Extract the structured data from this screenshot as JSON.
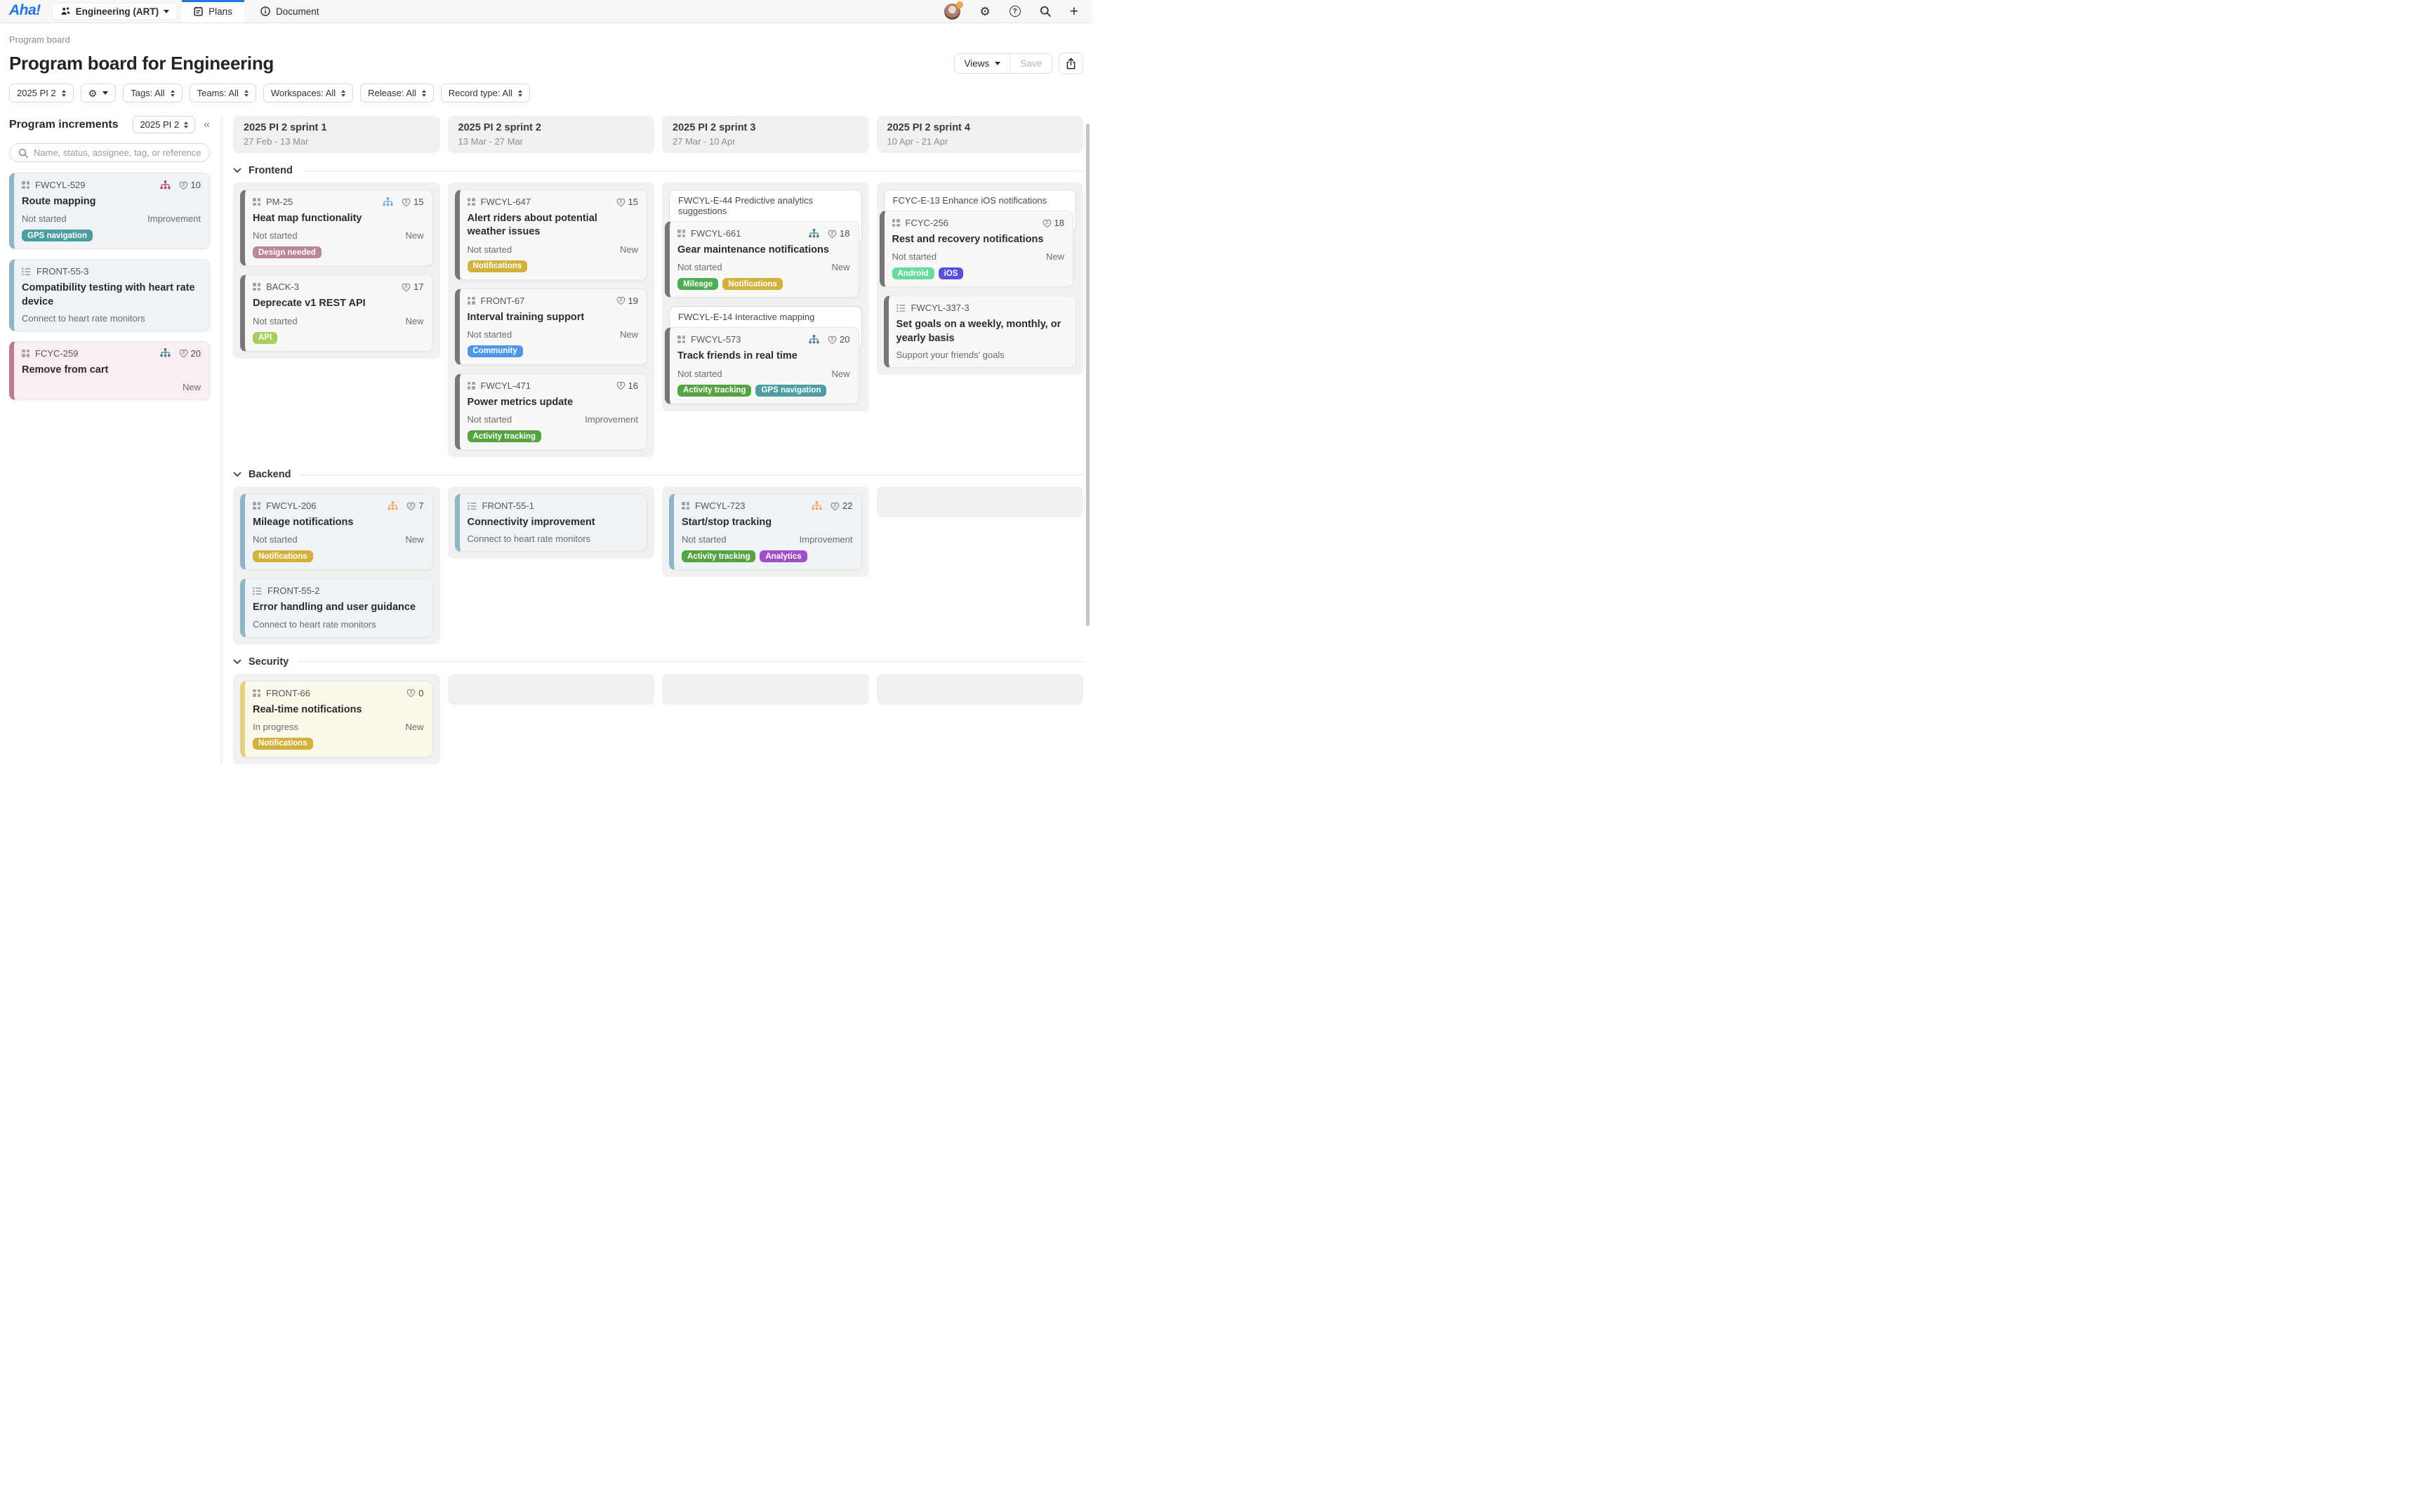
{
  "navbar": {
    "logo": "Aha!",
    "workspace": "Engineering (ART)",
    "tabs": [
      {
        "label": "Plans"
      },
      {
        "label": "Document"
      }
    ]
  },
  "header": {
    "breadcrumb": "Program board",
    "title": "Program board for Engineering",
    "views_label": "Views",
    "save_label": "Save"
  },
  "filters": {
    "pi": "2025 PI 2",
    "items": [
      "Tags: All",
      "Teams: All",
      "Workspaces: All",
      "Release: All",
      "Record type: All"
    ]
  },
  "sidebar": {
    "title": "Program increments",
    "pi_select": "2025 PI 2",
    "collapse_icon": "«",
    "search_placeholder": "Name, status, assignee, tag, or reference",
    "cards": [
      {
        "ref": "FWCYL-529",
        "icon": "grid",
        "variant": "blue",
        "sitemap": "maroon",
        "points": 10,
        "title": "Route mapping",
        "status": "Not started",
        "badge": "Improvement",
        "tags": [
          "GPS navigation"
        ]
      },
      {
        "ref": "FRONT-55-3",
        "icon": "list",
        "variant": "blue",
        "title": "Compatibility testing with heart rate device",
        "desc": "Connect to heart rate monitors"
      },
      {
        "ref": "FCYC-259",
        "icon": "grid",
        "variant": "pink",
        "sitemap": "teal",
        "points": 20,
        "title": "Remove from cart",
        "badge": "New"
      }
    ]
  },
  "board": {
    "sprints": [
      {
        "title": "2025 PI 2 sprint 1",
        "dates": "27 Feb - 13 Mar"
      },
      {
        "title": "2025 PI 2 sprint 2",
        "dates": "13 Mar - 27 Mar"
      },
      {
        "title": "2025 PI 2 sprint 3",
        "dates": "27 Mar - 10 Apr"
      },
      {
        "title": "2025 PI 2 sprint 4",
        "dates": "10 Apr - 21 Apr"
      }
    ],
    "sections": [
      {
        "name": "Frontend",
        "columns": [
          [
            {
              "t": "card",
              "ref": "PM-25",
              "icon": "grid",
              "sitemap": "blue",
              "points": 15,
              "title": "Heat map functionality",
              "status": "Not started",
              "badge": "New",
              "tags": [
                "Design needed"
              ]
            },
            {
              "t": "card",
              "ref": "BACK-3",
              "icon": "grid",
              "points": 17,
              "title": "Deprecate v1 REST API",
              "status": "Not started",
              "badge": "New",
              "tags": [
                "API"
              ]
            }
          ],
          [
            {
              "t": "card",
              "ref": "FWCYL-647",
              "icon": "grid",
              "points": 15,
              "title": "Alert riders about potential weather issues",
              "status": "Not started",
              "badge": "New",
              "tags": [
                "Notifications"
              ]
            },
            {
              "t": "card",
              "ref": "FRONT-67",
              "icon": "grid",
              "points": 19,
              "title": "Interval training support",
              "status": "Not started",
              "badge": "New",
              "tags": [
                "Community"
              ]
            },
            {
              "t": "card",
              "ref": "FWCYL-471",
              "icon": "grid",
              "points": 16,
              "title": "Power metrics update",
              "status": "Not started",
              "badge": "Improvement",
              "tags": [
                "Activity tracking"
              ]
            }
          ],
          [
            {
              "t": "epic",
              "label": "FWCYL-E-44 Predictive analytics suggestions",
              "card": {
                "ref": "FWCYL-661",
                "icon": "grid",
                "sitemap": "teal",
                "points": 18,
                "title": "Gear maintenance notifications",
                "status": "Not started",
                "badge": "New",
                "tags": [
                  "Mileage",
                  "Notifications"
                ]
              }
            },
            {
              "t": "epic",
              "label": "FWCYL-E-14 Interactive mapping",
              "card": {
                "ref": "FWCYL-573",
                "icon": "grid",
                "sitemap": "teal",
                "points": 20,
                "title": "Track friends in real time",
                "status": "Not started",
                "badge": "New",
                "tags": [
                  "Activity tracking",
                  "GPS navigation"
                ]
              }
            }
          ],
          [
            {
              "t": "epic",
              "label": "FCYC-E-13 Enhance iOS notifications",
              "card": {
                "ref": "FCYC-256",
                "icon": "grid",
                "points": 18,
                "title": "Rest and recovery notifications",
                "status": "Not started",
                "badge": "New",
                "tags": [
                  "Android",
                  "iOS"
                ]
              }
            },
            {
              "t": "card",
              "ref": "FWCYL-337-3",
              "icon": "list",
              "title": "Set goals on a weekly, monthly, or yearly basis",
              "desc": "Support your friends' goals"
            }
          ]
        ]
      },
      {
        "name": "Backend",
        "columns": [
          [
            {
              "t": "card",
              "ref": "FWCYL-206",
              "icon": "grid",
              "variant": "blue",
              "sitemap": "orange",
              "points": 7,
              "title": "Mileage notifications",
              "status": "Not started",
              "badge": "New",
              "tags": [
                "Notifications"
              ]
            },
            {
              "t": "card",
              "ref": "FRONT-55-2",
              "icon": "list",
              "variant": "blue",
              "title": "Error handling and user guidance",
              "desc": "Connect to heart rate monitors"
            }
          ],
          [
            {
              "t": "card",
              "ref": "FRONT-55-1",
              "icon": "list",
              "variant": "blue",
              "title": "Connectivity improvement",
              "desc": "Connect to heart rate monitors"
            }
          ],
          [
            {
              "t": "card",
              "ref": "FWCYL-723",
              "icon": "grid",
              "variant": "blue",
              "sitemap": "orange",
              "points": 22,
              "title": "Start/stop tracking",
              "status": "Not started",
              "badge": "Improvement",
              "tags": [
                "Activity tracking",
                "Analytics"
              ]
            }
          ],
          [
            {
              "t": "empty"
            }
          ]
        ]
      },
      {
        "name": "Security",
        "columns": [
          [
            {
              "t": "card",
              "ref": "FRONT-66",
              "icon": "grid",
              "variant": "yellow",
              "points": 0,
              "title": "Real-time notifications",
              "status": "In progress",
              "badge": "New",
              "tags": [
                "Notifications"
              ]
            }
          ],
          [
            {
              "t": "empty"
            }
          ],
          [
            {
              "t": "empty"
            }
          ],
          [
            {
              "t": "empty"
            }
          ]
        ]
      }
    ]
  },
  "colors": {
    "accent_blue": "#2376E5",
    "tags": {
      "GPS navigation": "#4C9EA0",
      "Design needed": "#BC8699",
      "API": "#A6CE5A",
      "Notifications": "#D2B13C",
      "Community": "#4D96E8",
      "Activity tracking": "#56A344",
      "Mileage": "#4CAD52",
      "Android": "#66DB9E",
      "iOS": "#5552D9",
      "Analytics": "#A14EC9"
    },
    "sitemap": {
      "maroon": "#B34A60",
      "teal": "#41808A",
      "blue": "#74A9DE",
      "orange": "#F2A65A"
    },
    "variants": {
      "default": {
        "bg": "#F8F8F6",
        "accent": "#76777A"
      },
      "blue": {
        "bg": "#EDF3F7",
        "accent": "#8FB5C9"
      },
      "pink": {
        "bg": "#F9EEF1",
        "accent": "#C07A90"
      },
      "yellow": {
        "bg": "#FCF9EA",
        "accent": "#E4D282"
      }
    }
  }
}
